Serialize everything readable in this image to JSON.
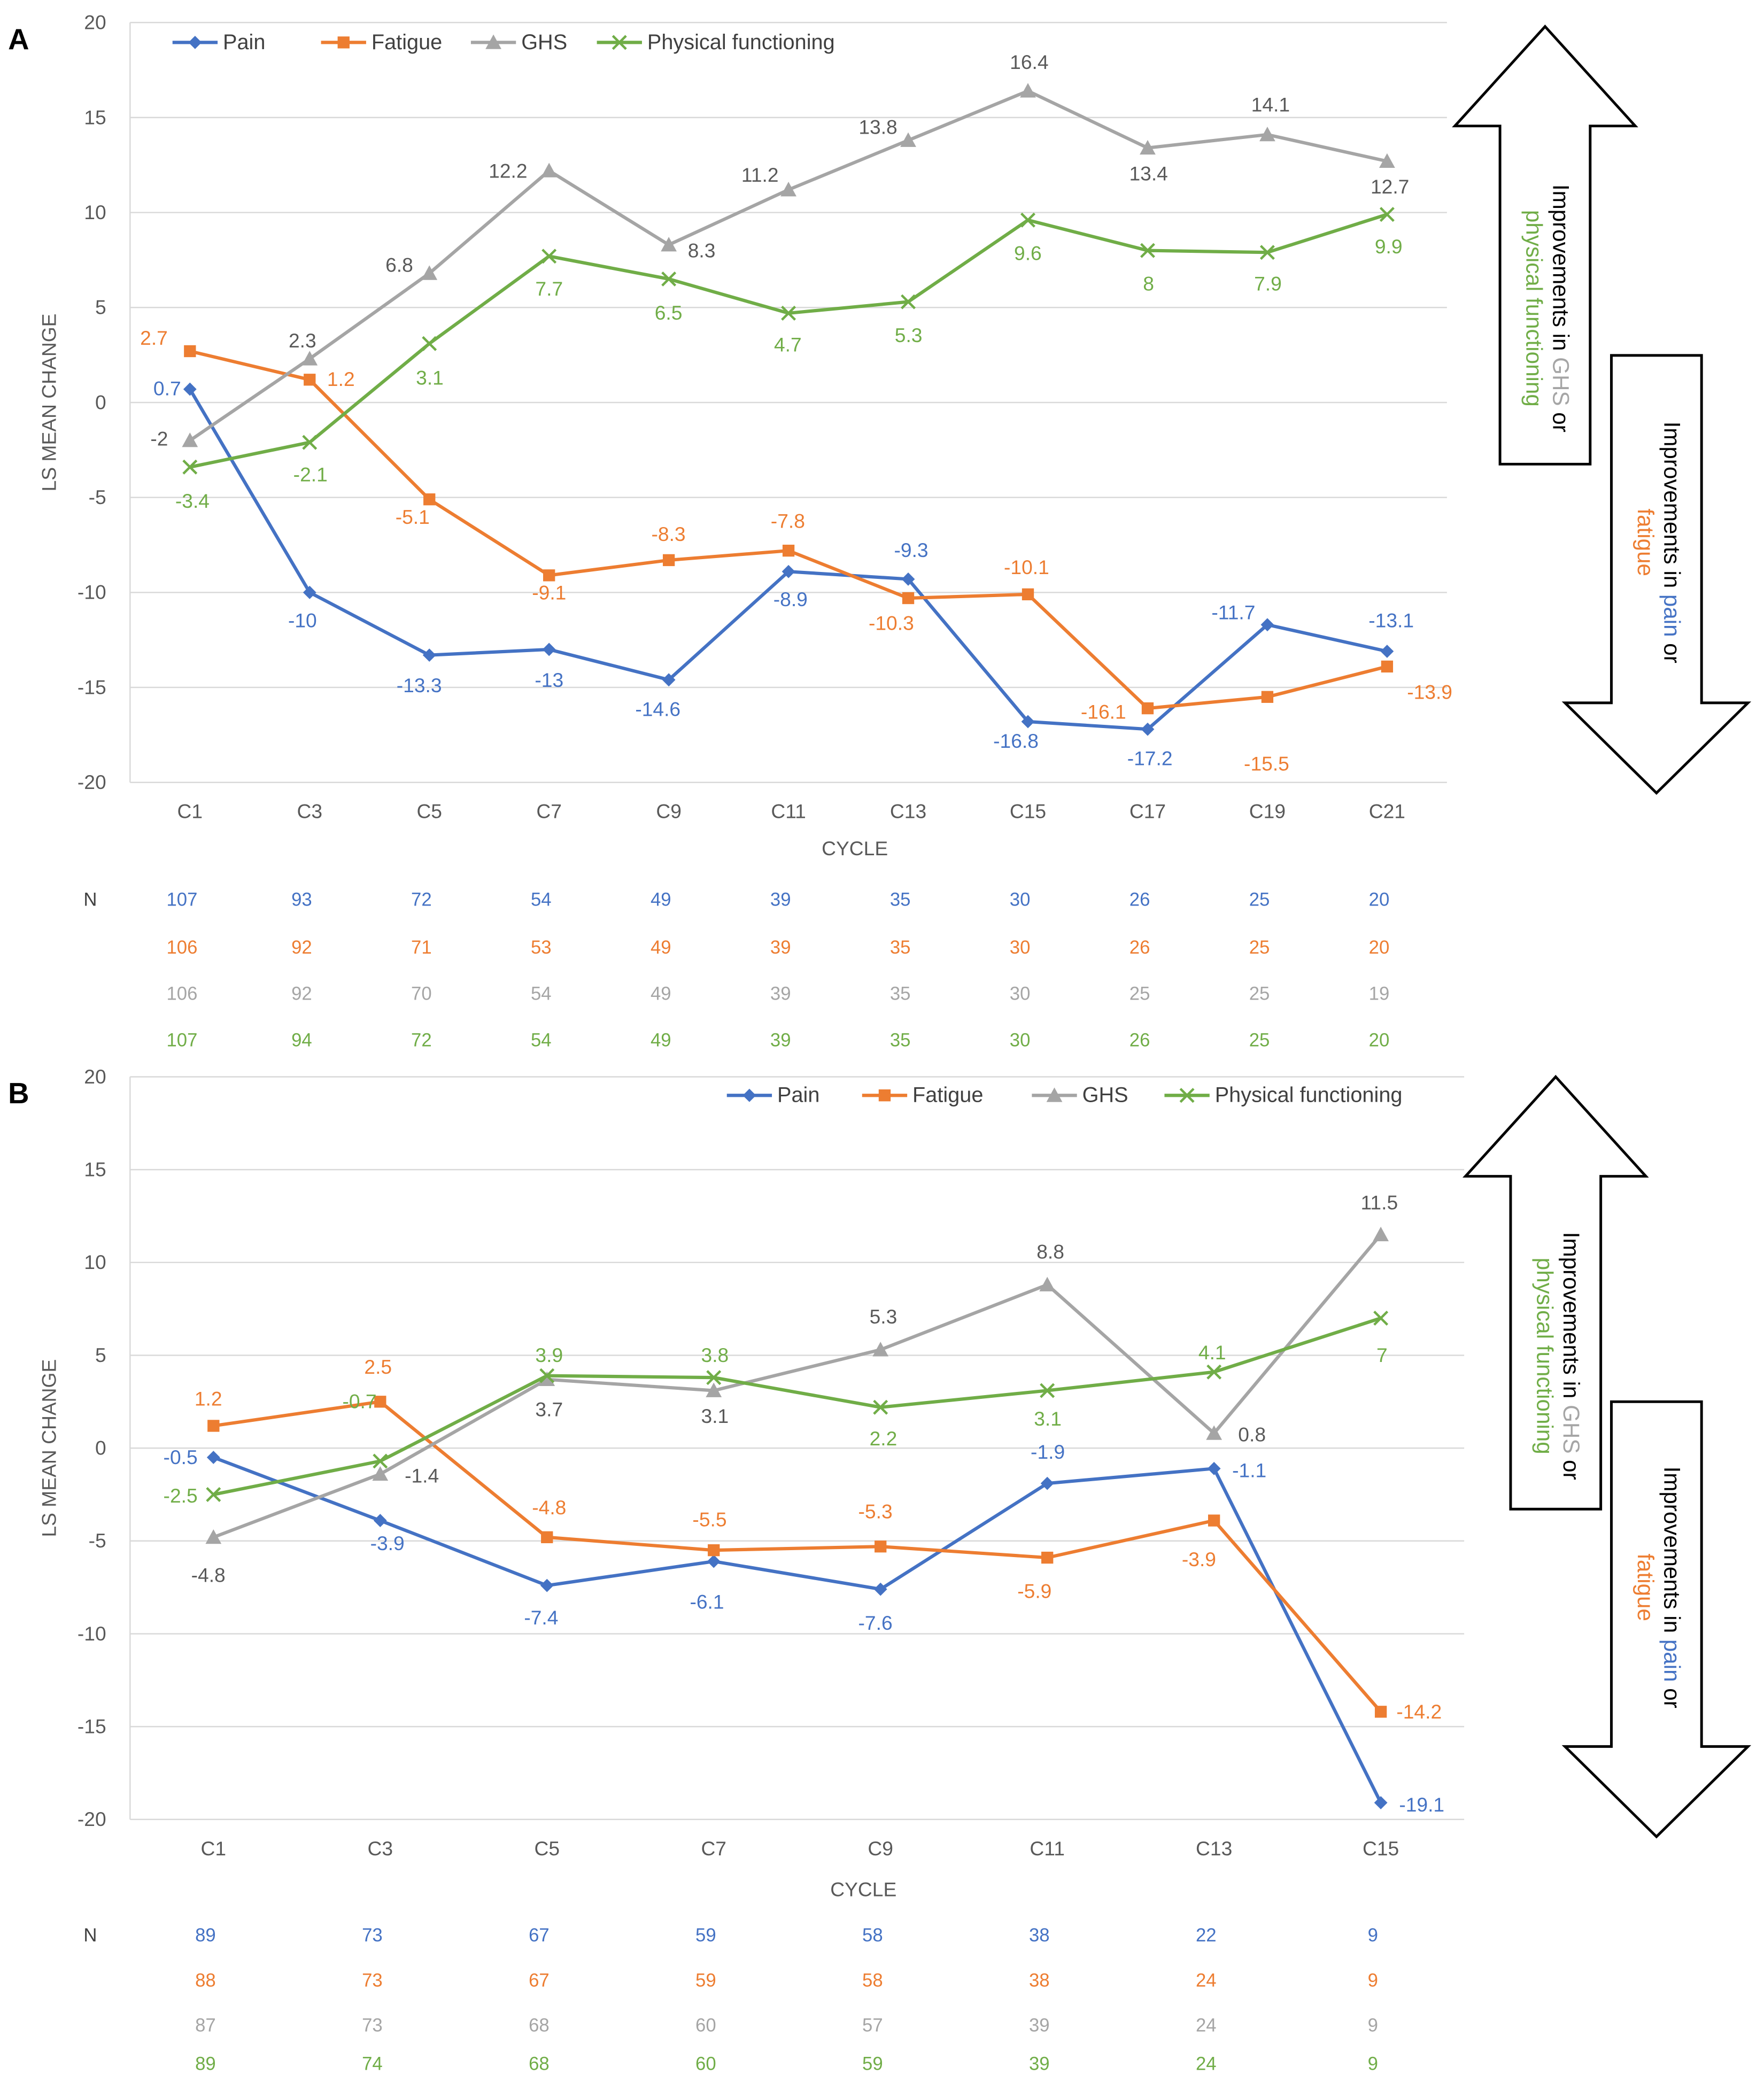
{
  "colors": {
    "Pain": "#4472C4",
    "Fatigue": "#ED7D31",
    "GHS": "#A5A5A5",
    "Physical functioning": "#70AD47",
    "grid": "#D9D9D9",
    "text": "#595959"
  },
  "markers": {
    "Pain": "diamond",
    "Fatigue": "square",
    "GHS": "triangle",
    "Physical functioning": "x"
  },
  "arrows": {
    "up": {
      "prefix": "Improvements in ",
      "a": "GHS",
      "mid": " or",
      "b": "physical functioning"
    },
    "down": {
      "prefix": "Improvements in ",
      "a": "pain",
      "mid": " or",
      "b": "fatigue"
    }
  },
  "chart_data": [
    {
      "panel": "A",
      "type": "line",
      "ylabel": "LS MEAN CHANGE",
      "xlabel": "CYCLE",
      "ylim": [
        -20,
        20
      ],
      "yticks": [
        -20,
        -15,
        -10,
        -5,
        0,
        5,
        10,
        15,
        20
      ],
      "grid": true,
      "legend": "top-left",
      "categories": [
        "C1",
        "C3",
        "C5",
        "C7",
        "C9",
        "C11",
        "C13",
        "C15",
        "C17",
        "C19",
        "C21"
      ],
      "series": [
        {
          "name": "Pain",
          "values": [
            0.7,
            -10,
            -13.3,
            -13,
            -14.6,
            -8.9,
            -9.3,
            -16.8,
            -17.2,
            -11.7,
            -13.1
          ]
        },
        {
          "name": "Fatigue",
          "values": [
            2.7,
            1.2,
            -5.1,
            -9.1,
            -8.3,
            -7.8,
            -10.3,
            -10.1,
            -16.1,
            -15.5,
            -13.9
          ]
        },
        {
          "name": "GHS",
          "values": [
            -2,
            2.3,
            6.8,
            12.2,
            8.3,
            11.2,
            13.8,
            16.4,
            13.4,
            14.1,
            12.7
          ]
        },
        {
          "name": "Physical functioning",
          "values": [
            -3.4,
            -2.1,
            3.1,
            7.7,
            6.5,
            4.7,
            5.3,
            9.6,
            8,
            7.9,
            9.9
          ]
        }
      ],
      "n_label": "N",
      "n_rows": [
        {
          "series": "Pain",
          "values": [
            107,
            93,
            72,
            54,
            49,
            39,
            35,
            30,
            26,
            25,
            20
          ]
        },
        {
          "series": "Fatigue",
          "values": [
            106,
            92,
            71,
            53,
            49,
            39,
            35,
            30,
            26,
            25,
            20
          ]
        },
        {
          "series": "GHS",
          "values": [
            106,
            92,
            70,
            54,
            49,
            39,
            35,
            30,
            25,
            25,
            19
          ]
        },
        {
          "series": "Physical functioning",
          "values": [
            107,
            94,
            72,
            54,
            49,
            39,
            35,
            30,
            26,
            25,
            20
          ]
        }
      ]
    },
    {
      "panel": "B",
      "type": "line",
      "ylabel": "LS MEAN CHANGE",
      "xlabel": "CYCLE",
      "ylim": [
        -20,
        20
      ],
      "yticks": [
        -20,
        -15,
        -10,
        -5,
        0,
        5,
        10,
        15,
        20
      ],
      "grid": true,
      "legend": "top-right",
      "categories": [
        "C1",
        "C3",
        "C5",
        "C7",
        "C9",
        "C11",
        "C13",
        "C15"
      ],
      "series": [
        {
          "name": "Pain",
          "values": [
            -0.5,
            -3.9,
            -7.4,
            -6.1,
            -7.6,
            -1.9,
            -1.1,
            -19.1
          ]
        },
        {
          "name": "Fatigue",
          "values": [
            1.2,
            2.5,
            -4.8,
            -5.5,
            -5.3,
            -5.9,
            -3.9,
            -14.2
          ]
        },
        {
          "name": "GHS",
          "values": [
            -4.8,
            -1.4,
            3.7,
            3.1,
            5.3,
            8.8,
            0.8,
            11.5
          ]
        },
        {
          "name": "Physical functioning",
          "values": [
            -2.5,
            -0.7,
            3.9,
            3.8,
            2.2,
            3.1,
            4.1,
            7
          ]
        }
      ],
      "n_label": "N",
      "n_rows": [
        {
          "series": "Pain",
          "values": [
            89,
            73,
            67,
            59,
            58,
            38,
            22,
            9
          ]
        },
        {
          "series": "Fatigue",
          "values": [
            88,
            73,
            67,
            59,
            58,
            38,
            24,
            9
          ]
        },
        {
          "series": "GHS",
          "values": [
            87,
            73,
            68,
            60,
            57,
            39,
            24,
            9
          ]
        },
        {
          "series": "Physical functioning",
          "values": [
            89,
            74,
            68,
            60,
            59,
            39,
            24,
            9
          ]
        }
      ]
    }
  ]
}
